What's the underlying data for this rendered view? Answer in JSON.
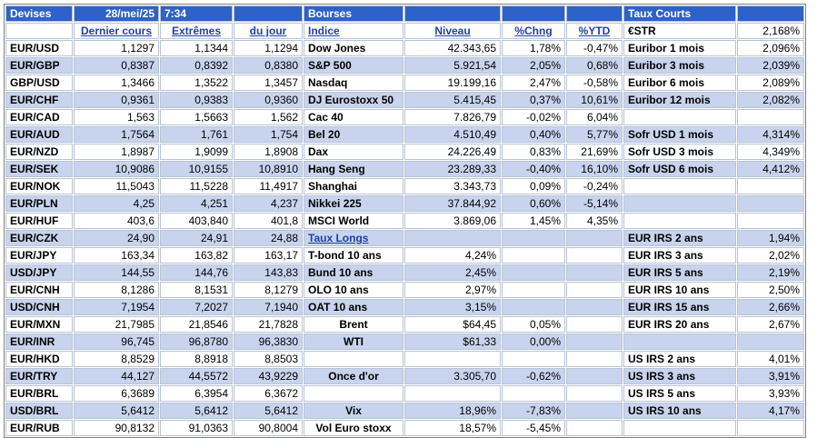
{
  "header": {
    "devises": "Devises",
    "date": "28/mei/25",
    "time": "7:34",
    "bourses": "Bourses",
    "taux_courts": "Taux Courts"
  },
  "sub": {
    "dernier": "Dernier cours",
    "extremes": "Extrêmes",
    "du_jour": "du jour",
    "indice": "Indice",
    "niveau": "Niveau",
    "chng": "%Chng",
    "ytd": "%YTD",
    "estr_label": "€STR",
    "estr_val": "2,168%"
  },
  "rows": [
    {
      "p": "EUR/USD",
      "a": "1,1297",
      "b": "1,1344",
      "c": "1,1294",
      "i": "Dow Jones",
      "n": "42.343,65",
      "ch": "1,78%",
      "y": "-0,47%",
      "t": "Euribor 1 mois",
      "tv": "2,096%"
    },
    {
      "p": "EUR/GBP",
      "a": "0,8387",
      "b": "0,8392",
      "c": "0,8380",
      "i": "S&P 500",
      "n": "5.921,54",
      "ch": "2,05%",
      "y": "0,68%",
      "t": "Euribor 3 mois",
      "tv": "2,039%"
    },
    {
      "p": "GBP/USD",
      "a": "1,3466",
      "b": "1,3522",
      "c": "1,3457",
      "i": "Nasdaq",
      "n": "19.199,16",
      "ch": "2,47%",
      "y": "-0,58%",
      "t": "Euribor 6 mois",
      "tv": "2,089%"
    },
    {
      "p": "EUR/CHF",
      "a": "0,9361",
      "b": "0,9383",
      "c": "0,9360",
      "i": "DJ Eurostoxx 50",
      "n": "5.415,45",
      "ch": "0,37%",
      "y": "10,61%",
      "t": "Euribor 12 mois",
      "tv": "2,082%"
    },
    {
      "p": "EUR/CAD",
      "a": "1,563",
      "b": "1,5663",
      "c": "1,562",
      "i": "Cac 40",
      "n": "7.826,79",
      "ch": "-0,02%",
      "y": "6,04%",
      "t": "",
      "tv": ""
    },
    {
      "p": "EUR/AUD",
      "a": "1,7564",
      "b": "1,761",
      "c": "1,754",
      "i": "Bel 20",
      "n": "4.510,49",
      "ch": "0,40%",
      "y": "5,77%",
      "t": "Sofr USD 1 mois",
      "tv": "4,314%"
    },
    {
      "p": "EUR/NZD",
      "a": "1,8987",
      "b": "1,9099",
      "c": "1,8908",
      "i": "Dax",
      "n": "24.226,49",
      "ch": "0,83%",
      "y": "21,69%",
      "t": "Sofr USD 3 mois",
      "tv": "4,349%"
    },
    {
      "p": "EUR/SEK",
      "a": "10,9086",
      "b": "10,9155",
      "c": "10,8910",
      "i": "Hang Seng",
      "n": "23.289,33",
      "ch": "-0,40%",
      "y": "16,10%",
      "t": "Sofr USD 6 mois",
      "tv": "4,412%"
    },
    {
      "p": "EUR/NOK",
      "a": "11,5043",
      "b": "11,5228",
      "c": "11,4917",
      "i": "Shanghai",
      "n": "3.343,73",
      "ch": "0,09%",
      "y": "-0,24%",
      "t": "",
      "tv": ""
    },
    {
      "p": "EUR/PLN",
      "a": "4,25",
      "b": "4,251",
      "c": "4,237",
      "i": "Nikkei 225",
      "n": "37.844,92",
      "ch": "0,60%",
      "y": "-5,14%",
      "t": "",
      "tv": ""
    },
    {
      "p": "EUR/HUF",
      "a": "403,6",
      "b": "403,840",
      "c": "401,8",
      "i": "MSCI World",
      "n": "3.869,06",
      "ch": "1,45%",
      "y": "4,35%",
      "t": "",
      "tv": ""
    },
    {
      "p": "EUR/CZK",
      "a": "24,90",
      "b": "24,91",
      "c": "24,88",
      "i": "Taux Longs",
      "n": "",
      "ch": "",
      "y": "",
      "t": "EUR IRS 2 ans",
      "tv": "1,94%"
    },
    {
      "p": "EUR/JPY",
      "a": "163,34",
      "b": "163,82",
      "c": "163,17",
      "i": "T-bond 10 ans",
      "n": "4,24%",
      "ch": "",
      "y": "",
      "t": "EUR IRS 3 ans",
      "tv": "2,02%"
    },
    {
      "p": "USD/JPY",
      "a": "144,55",
      "b": "144,76",
      "c": "143,83",
      "i": "Bund 10 ans",
      "n": "2,45%",
      "ch": "",
      "y": "",
      "t": "EUR IRS 5 ans",
      "tv": "2,19%"
    },
    {
      "p": "EUR/CNH",
      "a": "8,1286",
      "b": "8,1531",
      "c": "8,1279",
      "i": "OLO 10 ans",
      "n": "2,97%",
      "ch": "",
      "y": "",
      "t": "EUR IRS 10 ans",
      "tv": "2,50%"
    },
    {
      "p": "USD/CNH",
      "a": "7,1954",
      "b": "7,2027",
      "c": "7,1940",
      "i": "OAT 10 ans",
      "n": "3,15%",
      "ch": "",
      "y": "",
      "t": "EUR IRS 15 ans",
      "tv": "2,66%"
    },
    {
      "p": "EUR/MXN",
      "a": "21,7985",
      "b": "21,8546",
      "c": "21,7828",
      "i": "Brent",
      "n": "$64,45",
      "ch": "0,05%",
      "y": "",
      "t": "EUR IRS 20 ans",
      "tv": "2,67%"
    },
    {
      "p": "EUR/INR",
      "a": "96,745",
      "b": "96,8780",
      "c": "96,3830",
      "i": "WTI",
      "n": "$61,33",
      "ch": "0,00%",
      "y": "",
      "t": "",
      "tv": ""
    },
    {
      "p": "EUR/HKD",
      "a": "8,8529",
      "b": "8,8918",
      "c": "8,8503",
      "i": "",
      "n": "",
      "ch": "",
      "y": "",
      "t": "US IRS 2 ans",
      "tv": "4,01%"
    },
    {
      "p": "EUR/TRY",
      "a": "44,127",
      "b": "44,5572",
      "c": "43,9229",
      "i": "Once d'or",
      "n": "3.305,70",
      "ch": "-0,62%",
      "y": "",
      "t": "US IRS 3 ans",
      "tv": "3,91%"
    },
    {
      "p": "EUR/BRL",
      "a": "6,3689",
      "b": "6,3954",
      "c": "6,3672",
      "i": "",
      "n": "",
      "ch": "",
      "y": "",
      "t": "US IRS 5 ans",
      "tv": "3,93%"
    },
    {
      "p": "USD/BRL",
      "a": "5,6412",
      "b": "5,6412",
      "c": "5,6412",
      "i": "Vix",
      "n": "18,96%",
      "ch": "-7,83%",
      "y": "",
      "t": "US IRS 10 ans",
      "tv": "4,17%"
    },
    {
      "p": "EUR/RUB",
      "a": "90,8132",
      "b": "91,0363",
      "c": "90,8004",
      "i": "Vol Euro stoxx",
      "n": "18,57%",
      "ch": "-5,45%",
      "y": "",
      "t": "",
      "tv": ""
    }
  ]
}
